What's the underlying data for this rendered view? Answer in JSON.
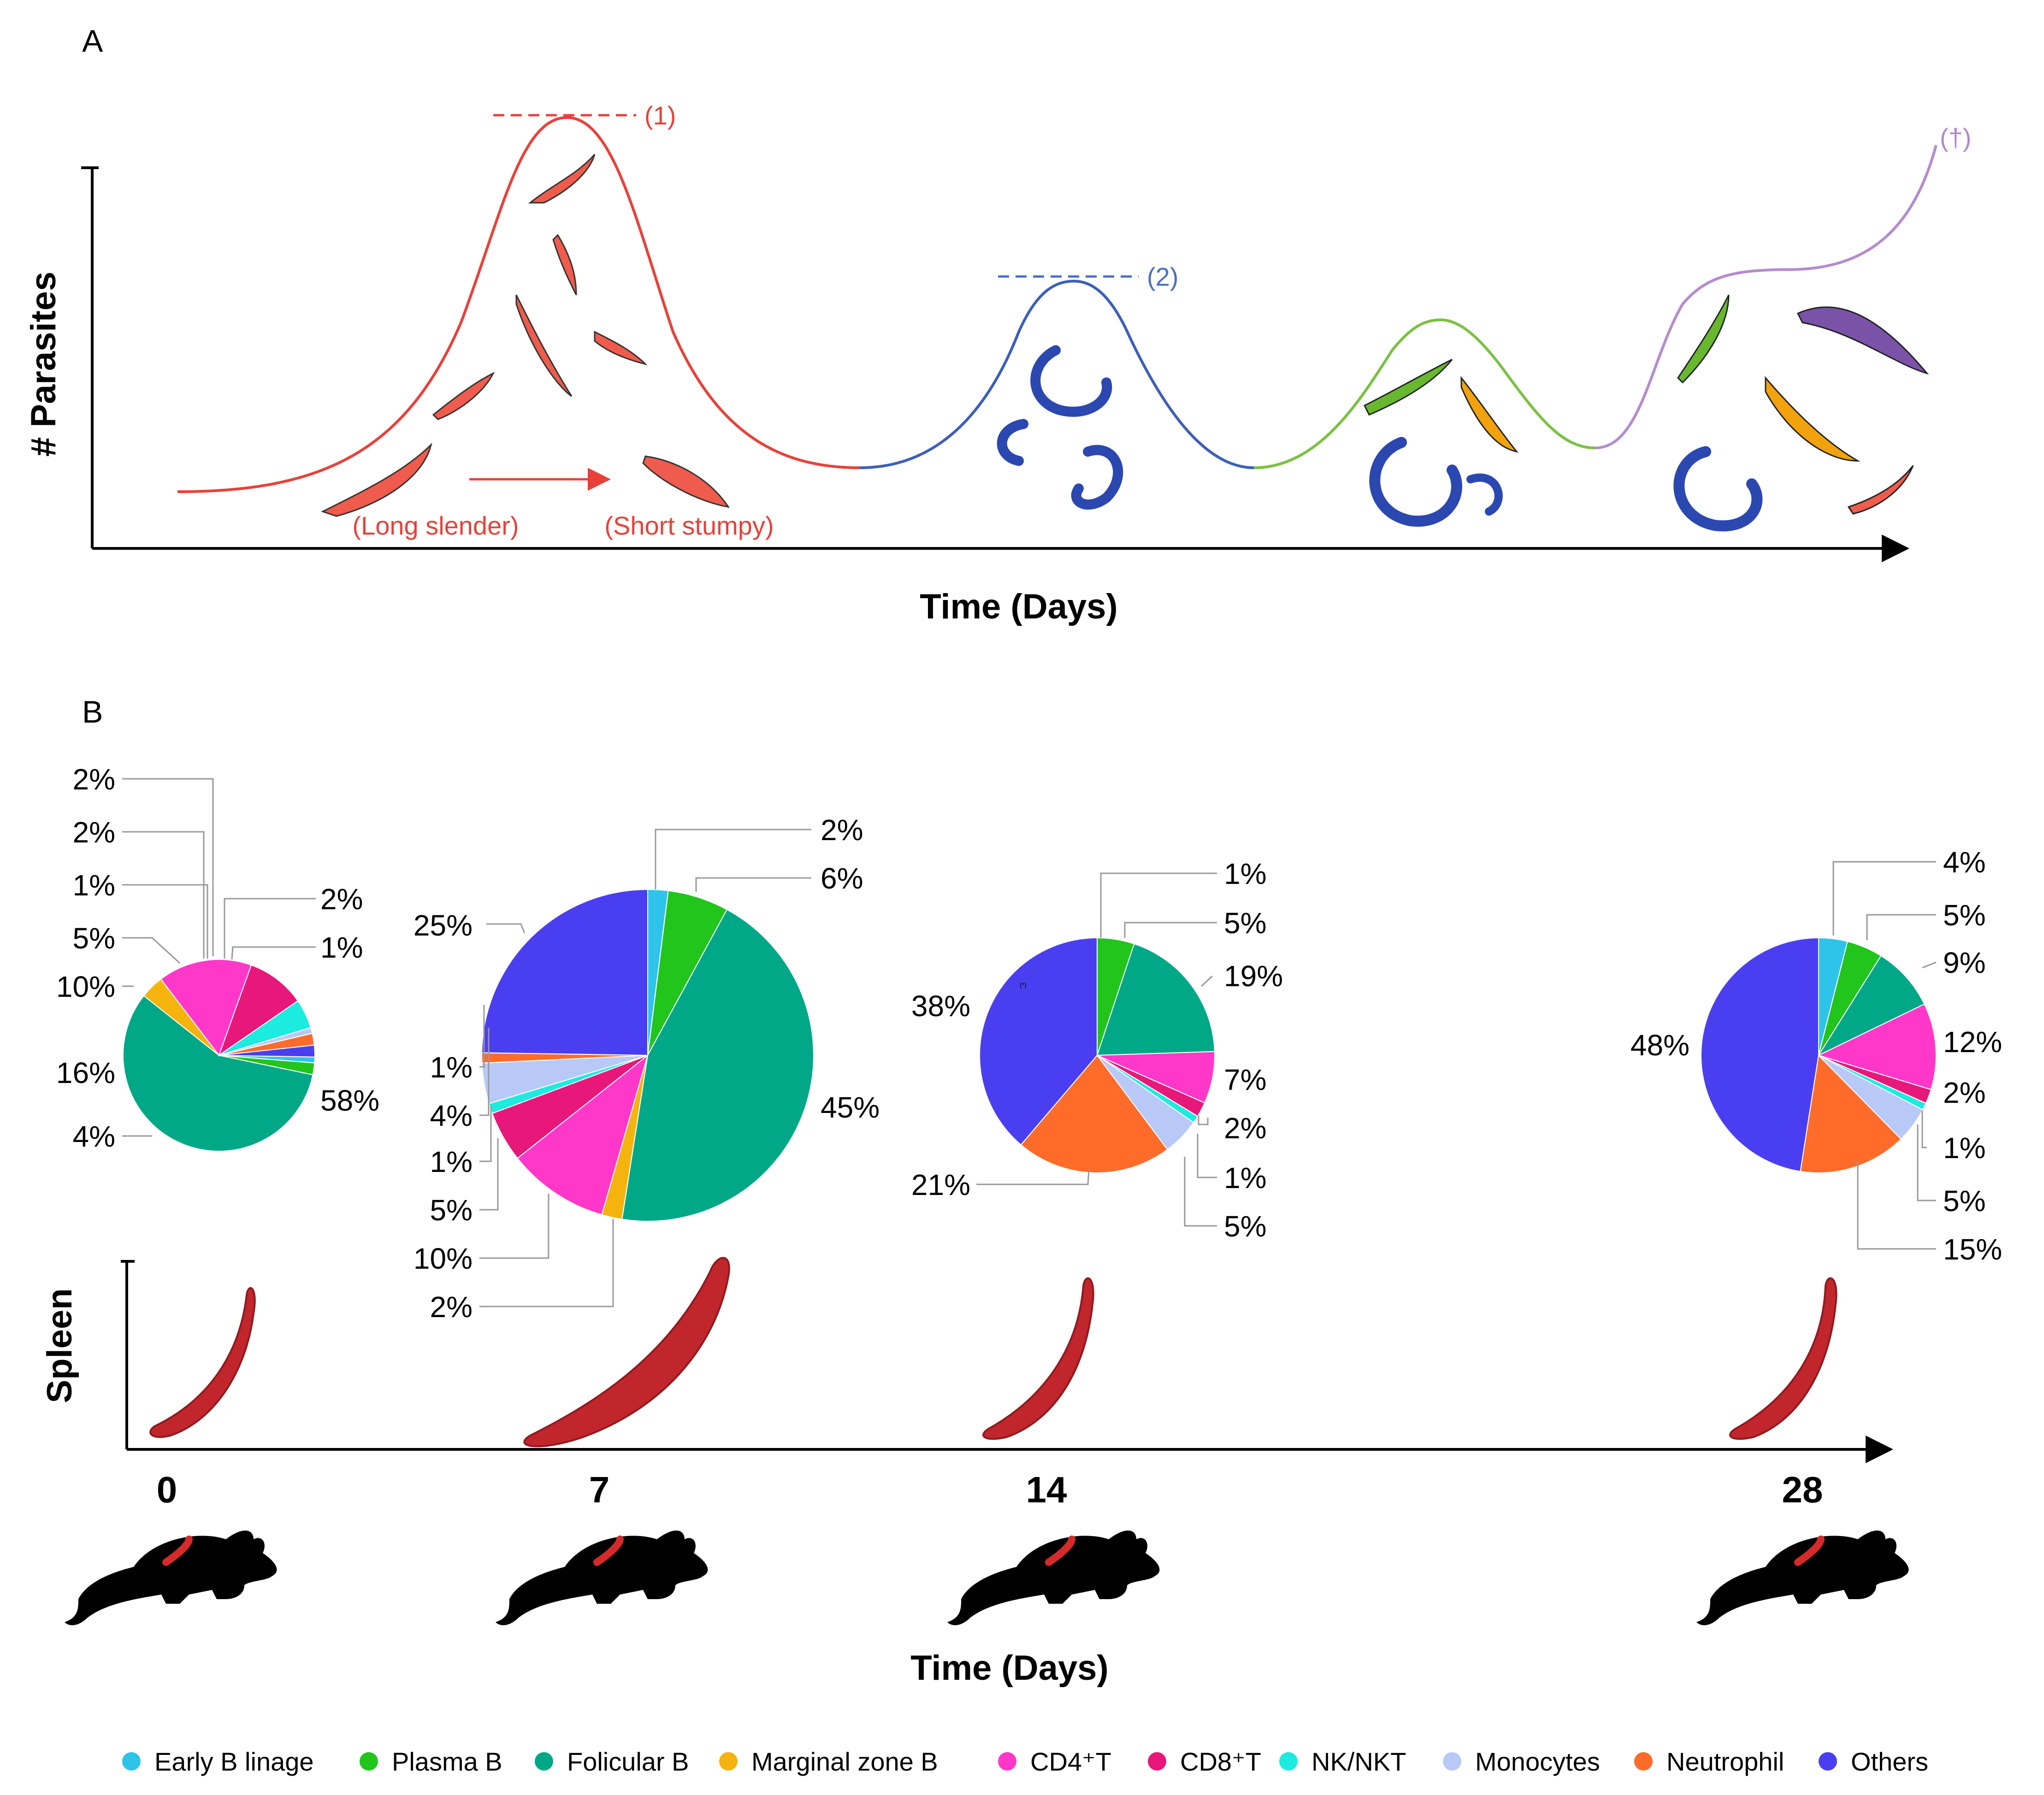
{
  "panel_a": {
    "label": "A",
    "y_axis_title": "# Parasites",
    "x_axis_title": "Time (Days)",
    "peak_labels": [
      "(1)",
      "(2)",
      "(†)"
    ],
    "forms": {
      "long": "(Long slender)",
      "short": "(Short stumpy)"
    },
    "colors": {
      "wave1": "#e8413a",
      "wave2": "#3c5fb8",
      "wave3": "#7cc043",
      "wave4": "#b48ccf"
    }
  },
  "panel_b": {
    "label": "B",
    "y_axis_title": "Spleen",
    "x_axis_title": "Time (Days)",
    "days": [
      "0",
      "7",
      "14",
      "28"
    ],
    "note_mark": "(*)"
  },
  "legend": [
    {
      "label": "Early B linage",
      "color": "#2ec4ea"
    },
    {
      "label": "Plasma B",
      "color": "#22c51c"
    },
    {
      "label": "Folicular B",
      "color": "#00a887"
    },
    {
      "label": "Marginal zone B",
      "color": "#f5b30e"
    },
    {
      "label": "CD4⁺T",
      "color": "#ff38c9"
    },
    {
      "label": "CD8⁺T",
      "color": "#e8177a"
    },
    {
      "label": "NK/NKT",
      "color": "#1cebe0"
    },
    {
      "label": "Monocytes",
      "color": "#b8c9f8"
    },
    {
      "label": "Neutrophil",
      "color": "#ff6c2a"
    },
    {
      "label": "Others",
      "color": "#4a3ff0"
    }
  ],
  "chart_data": [
    {
      "type": "pie",
      "title": "Day 0",
      "labels": [
        "Early B linage",
        "Plasma B",
        "Folicular B",
        "Marginal zone B",
        "CD4⁺T",
        "CD8⁺T",
        "NK/NKT",
        "Monocytes",
        "Neutrophil",
        "Others"
      ],
      "values": [
        1,
        2,
        58,
        4,
        16,
        10,
        5,
        1,
        2,
        2
      ],
      "value_labels": [
        "1%",
        "2%",
        "58%",
        "4%",
        "16%",
        "10%",
        "5%",
        "1%",
        "2%",
        "2%"
      ]
    },
    {
      "type": "pie",
      "title": "Day 7",
      "labels": [
        "Early B linage",
        "Plasma B",
        "Folicular B",
        "Marginal zone B",
        "CD4⁺T",
        "CD8⁺T",
        "NK/NKT",
        "Monocytes",
        "Neutrophil",
        "Others"
      ],
      "values": [
        2,
        6,
        45,
        2,
        10,
        5,
        1,
        4,
        1,
        25
      ],
      "value_labels": [
        "2%",
        "6%",
        "45%",
        "2%",
        "10%",
        "5%",
        "1%",
        "4%",
        "1%",
        "25%"
      ]
    },
    {
      "type": "pie",
      "title": "Day 14",
      "labels": [
        "Plasma B",
        "Folicular B",
        "CD4⁺T",
        "CD8⁺T",
        "NK/NKT",
        "Monocytes",
        "Neutrophil",
        "Others"
      ],
      "values": [
        5,
        19,
        7,
        2,
        1,
        5,
        21,
        38
      ],
      "value_labels": [
        "5%",
        "19%",
        "7%",
        "2%",
        "1%",
        "5%",
        "21%",
        "38%"
      ],
      "extra_labels": [
        "1%"
      ]
    },
    {
      "type": "pie",
      "title": "Day 28",
      "labels": [
        "Early B linage",
        "Plasma B",
        "Folicular B",
        "CD4⁺T",
        "CD8⁺T",
        "NK/NKT",
        "Monocytes",
        "Neutrophil",
        "Others"
      ],
      "values": [
        4,
        5,
        9,
        12,
        2,
        1,
        5,
        15,
        48
      ],
      "value_labels": [
        "4%",
        "5%",
        "9%",
        "12%",
        "2%",
        "1%",
        "5%",
        "15%",
        "48%"
      ]
    }
  ]
}
